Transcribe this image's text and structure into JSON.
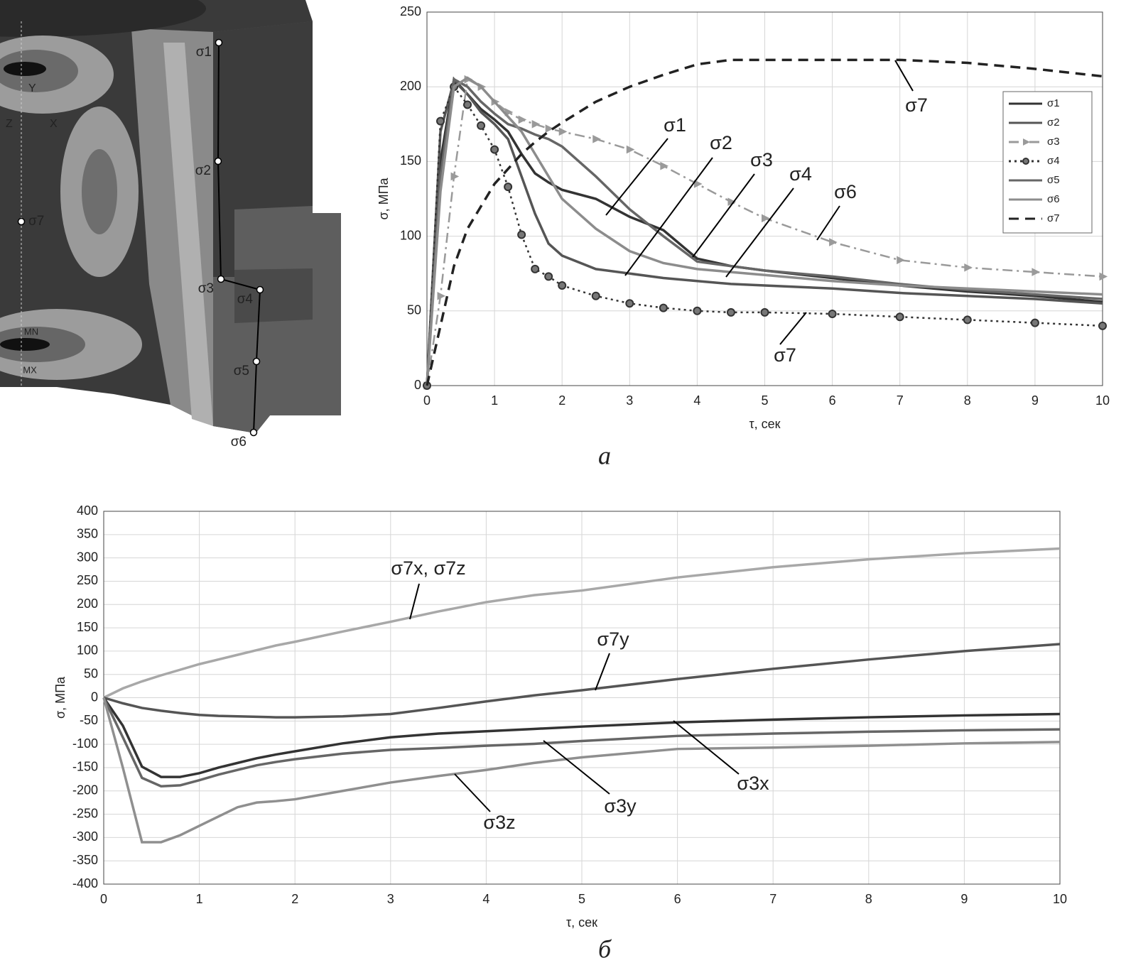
{
  "model": {
    "points": [
      "σ1",
      "σ2",
      "σ3",
      "σ4",
      "σ5",
      "σ6",
      "σ7"
    ],
    "axes": [
      "Y",
      "X",
      "Z"
    ],
    "extremes": [
      "MN",
      "MX"
    ]
  },
  "chart_data": [
    {
      "type": "line",
      "caption": "а",
      "xlabel": "τ, сек",
      "ylabel": "σ, МПа",
      "xlim": [
        0,
        10
      ],
      "ylim": [
        0,
        250
      ],
      "xticks": [
        0,
        1,
        2,
        3,
        4,
        5,
        6,
        7,
        8,
        9,
        10
      ],
      "yticks": [
        0,
        50,
        100,
        150,
        200,
        250
      ],
      "grid": true,
      "legend": "upper right",
      "x": [
        0,
        0.2,
        0.4,
        0.6,
        0.8,
        1,
        1.2,
        1.4,
        1.6,
        1.8,
        2,
        2.5,
        3,
        3.5,
        4,
        4.5,
        5,
        6,
        7,
        8,
        9,
        10
      ],
      "series": [
        {
          "name": "σ1",
          "color": "#333333",
          "style": "solid",
          "values": [
            0,
            150,
            205,
            195,
            185,
            178,
            170,
            155,
            142,
            136,
            131,
            125,
            113,
            104,
            85,
            80,
            77,
            72,
            67,
            63,
            60,
            56
          ]
        },
        {
          "name": "σ2",
          "color": "#555555",
          "style": "solid",
          "values": [
            0,
            170,
            204,
            195,
            183,
            175,
            165,
            140,
            115,
            95,
            87,
            78,
            75,
            72,
            70,
            68,
            67,
            65,
            62,
            60,
            58,
            55
          ]
        },
        {
          "name": "σ3",
          "color": "#9a9a9a",
          "style": "dashdot",
          "marker": "triangle",
          "values": [
            0,
            60,
            140,
            205,
            200,
            190,
            183,
            178,
            175,
            172,
            170,
            165,
            158,
            147,
            135,
            123,
            112,
            96,
            84,
            79,
            76,
            73
          ]
        },
        {
          "name": "σ4",
          "color": "#333333",
          "style": "dotted",
          "marker": "circle",
          "values": [
            0,
            177,
            200,
            188,
            174,
            158,
            133,
            101,
            78,
            73,
            67,
            60,
            55,
            52,
            50,
            49,
            49,
            48,
            46,
            44,
            42,
            40
          ]
        },
        {
          "name": "σ5",
          "color": "#666666",
          "style": "solid",
          "values": [
            0,
            140,
            205,
            200,
            190,
            182,
            175,
            172,
            168,
            165,
            160,
            140,
            118,
            100,
            83,
            80,
            77,
            73,
            68,
            64,
            61,
            58
          ]
        },
        {
          "name": "σ6",
          "color": "#8c8c8c",
          "style": "solid",
          "values": [
            0,
            130,
            200,
            206,
            200,
            190,
            180,
            170,
            155,
            140,
            125,
            105,
            90,
            82,
            78,
            76,
            74,
            70,
            67,
            65,
            63,
            61
          ]
        },
        {
          "name": "σ7",
          "color": "#222222",
          "style": "dashed",
          "values": [
            0,
            40,
            80,
            105,
            120,
            135,
            145,
            155,
            163,
            170,
            176,
            190,
            200,
            208,
            215,
            218,
            218,
            218,
            218,
            216,
            212,
            207
          ]
        }
      ]
    },
    {
      "type": "line",
      "caption": "б",
      "xlabel": "τ, сек",
      "ylabel": "σ, МПа",
      "xlim": [
        0,
        10
      ],
      "ylim": [
        -400,
        400
      ],
      "xticks": [
        0,
        1,
        2,
        3,
        4,
        5,
        6,
        7,
        8,
        9,
        10
      ],
      "yticks": [
        -400,
        -350,
        -300,
        -250,
        -200,
        -150,
        -100,
        -50,
        0,
        50,
        100,
        150,
        200,
        250,
        300,
        350,
        400
      ],
      "grid": true,
      "x": [
        0,
        0.2,
        0.4,
        0.6,
        0.8,
        1,
        1.2,
        1.4,
        1.6,
        1.8,
        2,
        2.5,
        3,
        3.5,
        4,
        4.5,
        5,
        6,
        7,
        8,
        9,
        10
      ],
      "series": [
        {
          "name": "σ7x, σ7z",
          "color": "#a8a8a8",
          "style": "solid",
          "values": [
            0,
            20,
            35,
            48,
            60,
            72,
            82,
            92,
            102,
            112,
            120,
            142,
            163,
            185,
            205,
            220,
            230,
            258,
            280,
            297,
            310,
            320
          ]
        },
        {
          "name": "σ7y",
          "color": "#555555",
          "style": "solid",
          "values": [
            0,
            -12,
            -22,
            -28,
            -33,
            -37,
            -39,
            -40,
            -41,
            -42,
            -42,
            -40,
            -35,
            -22,
            -8,
            5,
            16,
            40,
            62,
            82,
            100,
            115
          ]
        },
        {
          "name": "σ3x",
          "color": "#333333",
          "style": "solid",
          "values": [
            0,
            -60,
            -148,
            -170,
            -170,
            -162,
            -150,
            -140,
            -130,
            -122,
            -115,
            -98,
            -85,
            -77,
            -72,
            -67,
            -62,
            -53,
            -47,
            -42,
            -38,
            -35
          ]
        },
        {
          "name": "σ3y",
          "color": "#666666",
          "style": "solid",
          "values": [
            0,
            -85,
            -172,
            -190,
            -188,
            -177,
            -165,
            -155,
            -145,
            -138,
            -132,
            -120,
            -112,
            -108,
            -103,
            -99,
            -93,
            -82,
            -77,
            -73,
            -70,
            -68
          ]
        },
        {
          "name": "σ3z",
          "color": "#8f8f8f",
          "style": "solid",
          "values": [
            0,
            -150,
            -310,
            -310,
            -295,
            -275,
            -255,
            -235,
            -225,
            -222,
            -218,
            -200,
            -182,
            -168,
            -155,
            -140,
            -128,
            -110,
            -107,
            -103,
            -98,
            -95
          ]
        }
      ]
    }
  ]
}
